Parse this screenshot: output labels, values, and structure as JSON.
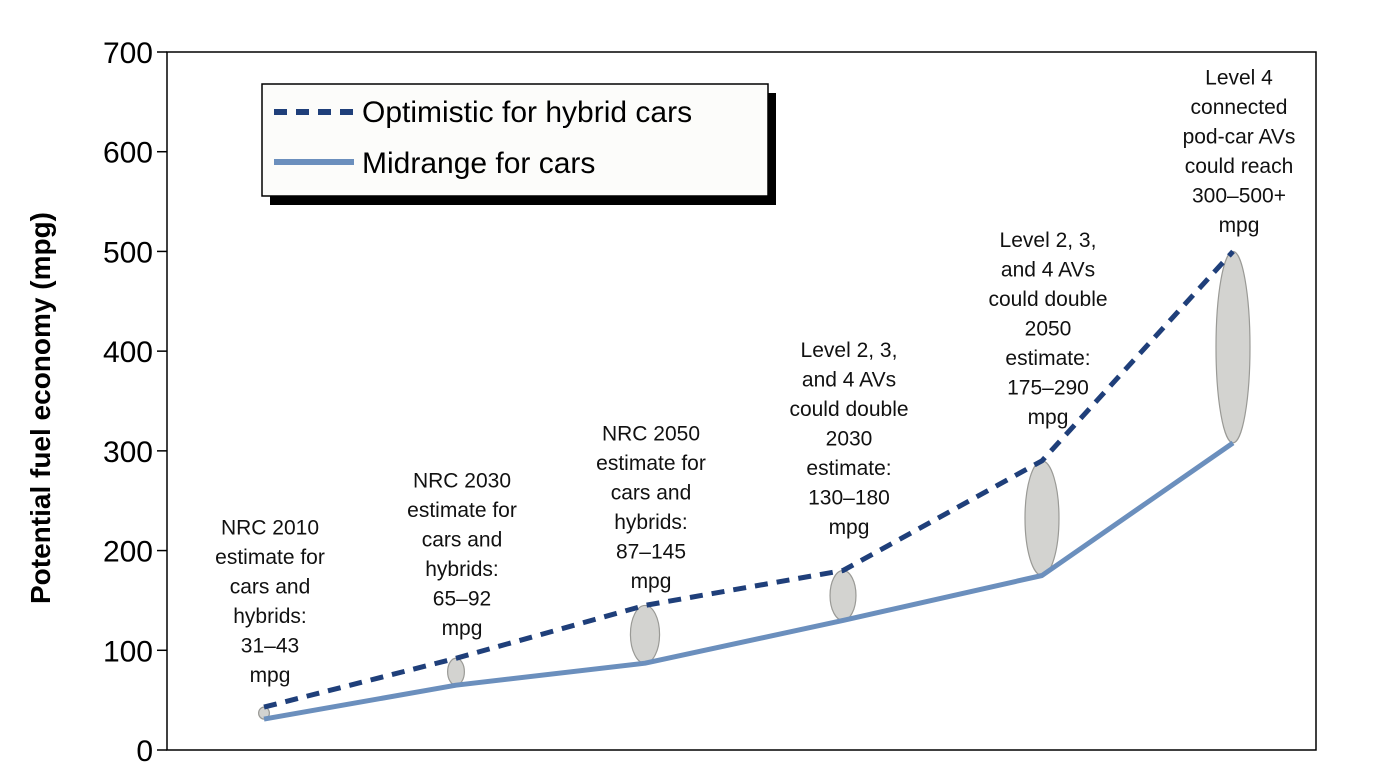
{
  "chart_data": {
    "type": "line",
    "title": "",
    "xlabel": "",
    "ylabel": "Potential fuel economy (mpg)",
    "ylim": [
      0,
      700
    ],
    "yticks": [
      "0",
      "100",
      "200",
      "300",
      "400",
      "500",
      "600",
      "700"
    ],
    "grid": false,
    "legend_placement": "top-left",
    "x": [
      1,
      2,
      3,
      4,
      5,
      6
    ],
    "series": [
      {
        "name": "Optimistic for hybrid cars",
        "style": "dashed",
        "color": "#1f3f7a",
        "values": [
          43,
          92,
          145,
          180,
          290,
          500
        ]
      },
      {
        "name": "Midrange for cars",
        "style": "solid",
        "color": "#6b8fbd",
        "values": [
          31,
          65,
          87,
          130,
          175,
          308
        ]
      }
    ],
    "ranges": [
      {
        "low": 31,
        "high": 43
      },
      {
        "low": 65,
        "high": 92
      },
      {
        "low": 87,
        "high": 145
      },
      {
        "low": 130,
        "high": 180
      },
      {
        "low": 175,
        "high": 290
      },
      {
        "low": 308,
        "high": 500
      }
    ],
    "annotations": [
      {
        "lines": [
          "NRC 2010",
          "estimate for",
          "cars and",
          "hybrids:",
          "31–43",
          "mpg"
        ]
      },
      {
        "lines": [
          "NRC 2030",
          "estimate for",
          "cars and",
          "hybrids:",
          "65–92",
          "mpg"
        ]
      },
      {
        "lines": [
          "NRC 2050",
          "estimate for",
          "cars and",
          "hybrids:",
          "87–145",
          "mpg"
        ]
      },
      {
        "lines": [
          "Level 2, 3,",
          "and 4 AVs",
          "could double",
          "2030",
          "estimate:",
          "130–180",
          "mpg"
        ]
      },
      {
        "lines": [
          "Level 2, 3,",
          "and 4 AVs",
          "could double",
          "2050",
          "estimate:",
          "175–290",
          "mpg"
        ]
      },
      {
        "lines": [
          "Level 4",
          "connected",
          "pod-car AVs",
          "could reach",
          "300–500+",
          "mpg"
        ]
      }
    ],
    "colors": {
      "range_fill": "#d3d3d0",
      "range_stroke": "#9a9a96",
      "axis": "#000000"
    }
  }
}
